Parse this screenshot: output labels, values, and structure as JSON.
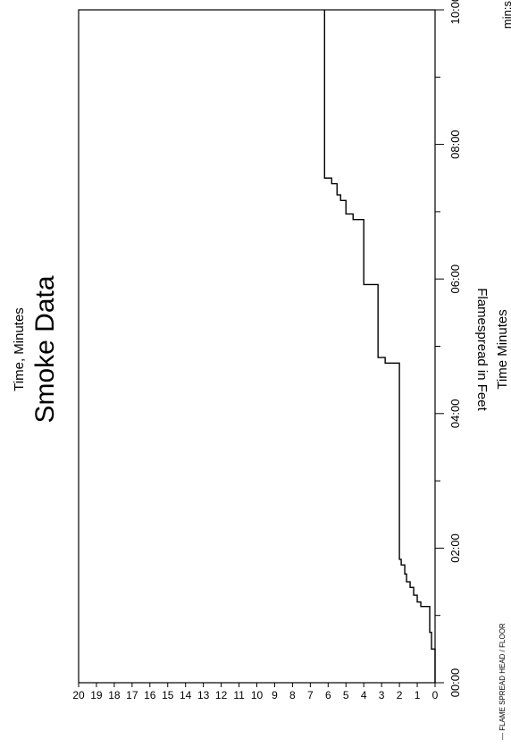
{
  "chart_data": {
    "type": "line",
    "title": "Smoke Data",
    "subtitle": "Time, Minutes",
    "xlabel": "Time Minutes",
    "x_unit": "min:s",
    "ylabel": "Flamespread in Feet",
    "legend": "— FLAME SPREAD HEAD / FLOOR",
    "xlim": [
      0,
      600
    ],
    "ylim": [
      0,
      20
    ],
    "x_ticks": [
      "00:00",
      "02:00",
      "04:00",
      "06:00",
      "08:00",
      "10:00"
    ],
    "y_ticks": [
      "0",
      "1",
      "2",
      "3",
      "4",
      "5",
      "6",
      "7",
      "8",
      "9",
      "10",
      "11",
      "12",
      "13",
      "14",
      "15",
      "16",
      "17",
      "18",
      "19",
      "20"
    ],
    "grid": false,
    "series": [
      {
        "x": [
          0,
          30,
          45,
          62,
          68,
          72,
          78,
          85,
          90,
          97,
          105,
          110,
          280,
          285,
          290,
          350,
          355,
          410,
          413,
          418,
          430,
          435,
          445,
          450,
          600
        ],
        "y": [
          0,
          0.2,
          0.3,
          0.3,
          0.8,
          1.0,
          1.2,
          1.4,
          1.6,
          1.7,
          1.9,
          2.0,
          2.0,
          2.8,
          3.2,
          3.2,
          4.0,
          4.0,
          4.6,
          5.0,
          5.3,
          5.5,
          5.8,
          6.2,
          6.2
        ]
      }
    ]
  }
}
